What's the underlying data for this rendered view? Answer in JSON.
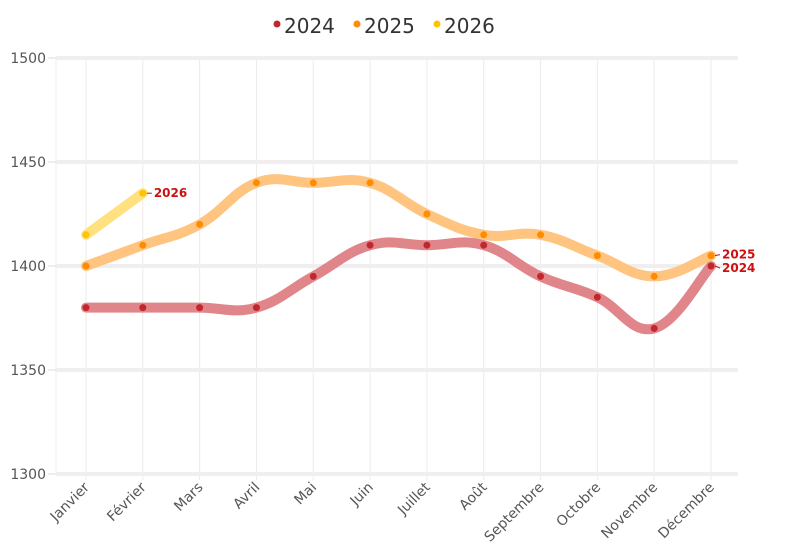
{
  "chart_data": {
    "type": "line",
    "title": "",
    "xlabel": "",
    "ylabel": "",
    "categories": [
      "Janvier",
      "Février",
      "Mars",
      "Avril",
      "Mai",
      "Juin",
      "Juillet",
      "Août",
      "Septembre",
      "Octobre",
      "Novembre",
      "Décembre"
    ],
    "ylim": [
      1300,
      1500
    ],
    "yticks": [
      "1300",
      "1350",
      "1400",
      "1450",
      "1500"
    ],
    "grid": true,
    "legend_position": "top-center",
    "series": [
      {
        "name": "2024",
        "color": "#c0282d",
        "line_color": "#e0868b",
        "values": [
          1380,
          1380,
          1380,
          1380,
          1395,
          1410,
          1410,
          1410,
          1395,
          1385,
          1370,
          1400
        ],
        "end_label": "2024"
      },
      {
        "name": "2025",
        "color": "#ff8c00",
        "line_color": "#ffc47f",
        "values": [
          1400,
          1410,
          1420,
          1440,
          1440,
          1440,
          1425,
          1415,
          1415,
          1405,
          1395,
          1405
        ],
        "end_label": "2025"
      },
      {
        "name": "2026",
        "color": "#ffc400",
        "line_color": "#ffe17f",
        "values": [
          1415,
          1435
        ],
        "end_label": "2026"
      }
    ],
    "annotation_color": "#cc1111"
  }
}
